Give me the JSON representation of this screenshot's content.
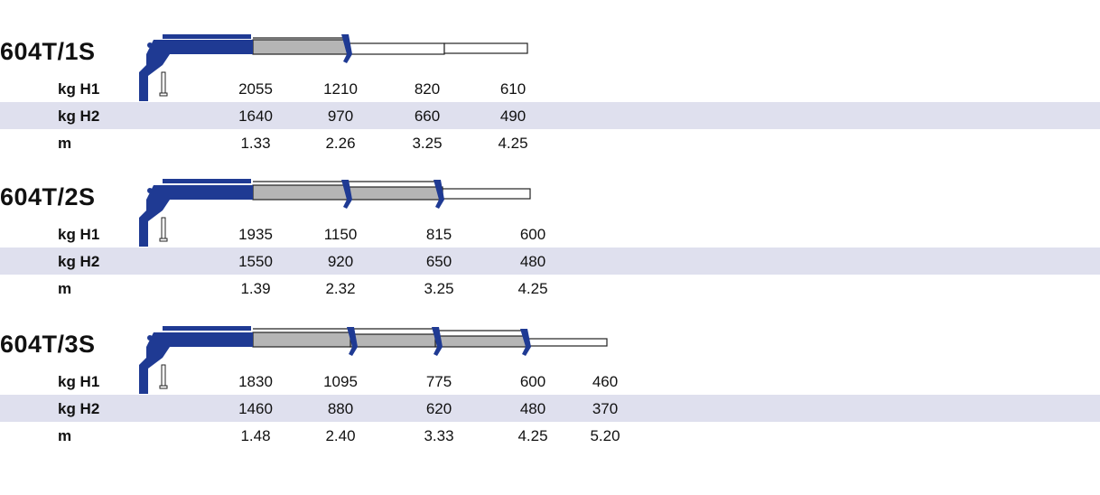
{
  "colors": {
    "boom_blue": "#1f3a93",
    "extension_grey": "#b5b5b5",
    "row_shade": "#dfe0ee"
  },
  "sections": [
    {
      "model": "604T/1S",
      "rows": [
        {
          "label": "kg H1",
          "values": [
            "2055",
            "1210",
            "820",
            "610"
          ]
        },
        {
          "label": "kg H2",
          "values": [
            "1640",
            "970",
            "660",
            "490"
          ]
        },
        {
          "label": "m",
          "values": [
            "1.33",
            "2.26",
            "3.25",
            "4.25"
          ]
        }
      ]
    },
    {
      "model": "604T/2S",
      "rows": [
        {
          "label": "kg H1",
          "values": [
            "1935",
            "1150",
            "815",
            "600"
          ]
        },
        {
          "label": "kg H2",
          "values": [
            "1550",
            "920",
            "650",
            "480"
          ]
        },
        {
          "label": "m",
          "values": [
            "1.39",
            "2.32",
            "3.25",
            "4.25"
          ]
        }
      ]
    },
    {
      "model": "604T/3S",
      "rows": [
        {
          "label": "kg H1",
          "values": [
            "1830",
            "1095",
            "775",
            "600",
            "460"
          ]
        },
        {
          "label": "kg H2",
          "values": [
            "1460",
            "880",
            "620",
            "480",
            "370"
          ]
        },
        {
          "label": "m",
          "values": [
            "1.48",
            "2.40",
            "3.33",
            "4.25",
            "5.20"
          ]
        }
      ]
    }
  ]
}
